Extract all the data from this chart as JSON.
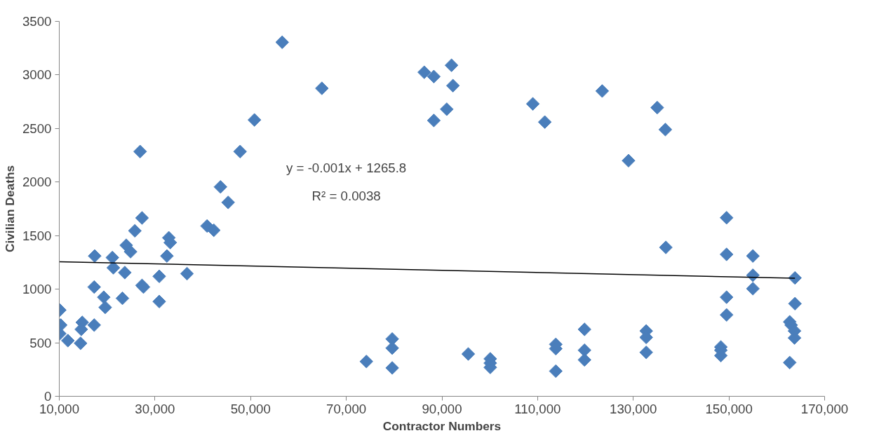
{
  "chart_data": {
    "type": "scatter",
    "xlabel": "Contractor Numbers",
    "ylabel": "Civilian Deaths",
    "xlim": [
      10000,
      170000
    ],
    "ylim": [
      0,
      3500
    ],
    "xticks": [
      {
        "value": 10000,
        "label": "10,000"
      },
      {
        "value": 30000,
        "label": "30,000"
      },
      {
        "value": 50000,
        "label": "50,000"
      },
      {
        "value": 70000,
        "label": "70,000"
      },
      {
        "value": 90000,
        "label": "90,000"
      },
      {
        "value": 110000,
        "label": "110,000"
      },
      {
        "value": 130000,
        "label": "130,000"
      },
      {
        "value": 150000,
        "label": "150,000"
      },
      {
        "value": 170000,
        "label": "170,000"
      }
    ],
    "yticks": [
      0,
      500,
      1000,
      1500,
      2000,
      2500,
      3000,
      3500
    ],
    "marker": "diamond",
    "grid": false,
    "annotations": [
      "y = -0.001x + 1265.8",
      "R² = 0.0038"
    ],
    "series": [
      {
        "color": "#4a7ebb",
        "x": [
          10100,
          10300,
          10100,
          11800,
          14450,
          14800,
          14600,
          17300,
          17300,
          17400,
          19300,
          19600,
          21100,
          21300,
          23700,
          23200,
          24000,
          24900,
          25800,
          27300,
          26900,
          27300,
          27600,
          30900,
          30900,
          32500,
          32900,
          33200,
          36700,
          40900,
          42300,
          43700,
          45300,
          47800,
          50800,
          56600,
          64900,
          86300,
          88300,
          88300,
          92000,
          92300,
          91000,
          109000,
          111500,
          123500,
          129000,
          135000,
          136700,
          136800,
          149500,
          149500,
          149500,
          149500,
          155000,
          155000,
          155000,
          163800,
          163800,
          162700,
          163000,
          163700,
          163700,
          162700,
          132700,
          132700,
          132700,
          148300,
          148300,
          148300,
          74200,
          79600,
          79600,
          79600,
          95500,
          100100,
          100100,
          100100,
          113800,
          113800,
          113800,
          119800,
          119800,
          119800
        ],
        "values": [
          805,
          665,
          585,
          520,
          495,
          690,
          625,
          665,
          1020,
          1310,
          925,
          830,
          1295,
          1200,
          1155,
          915,
          1410,
          1350,
          1545,
          1665,
          2285,
          1035,
          1020,
          1120,
          885,
          1310,
          1480,
          1435,
          1145,
          1590,
          1550,
          1955,
          1810,
          2285,
          2580,
          3305,
          2875,
          3025,
          2985,
          2575,
          3090,
          2900,
          2680,
          2730,
          2560,
          2850,
          2200,
          2695,
          2490,
          1390,
          1667,
          1325,
          925,
          760,
          1310,
          1130,
          1005,
          1105,
          865,
          695,
          665,
          610,
          545,
          315,
          610,
          550,
          410,
          460,
          430,
          380,
          325,
          535,
          450,
          265,
          395,
          350,
          310,
          270,
          485,
          445,
          235,
          625,
          430,
          340
        ]
      },
      {
        "type": "line",
        "marker": "none",
        "color": "#000000",
        "x": [
          10000,
          163800
        ],
        "values": [
          1256,
          1102
        ]
      }
    ]
  }
}
